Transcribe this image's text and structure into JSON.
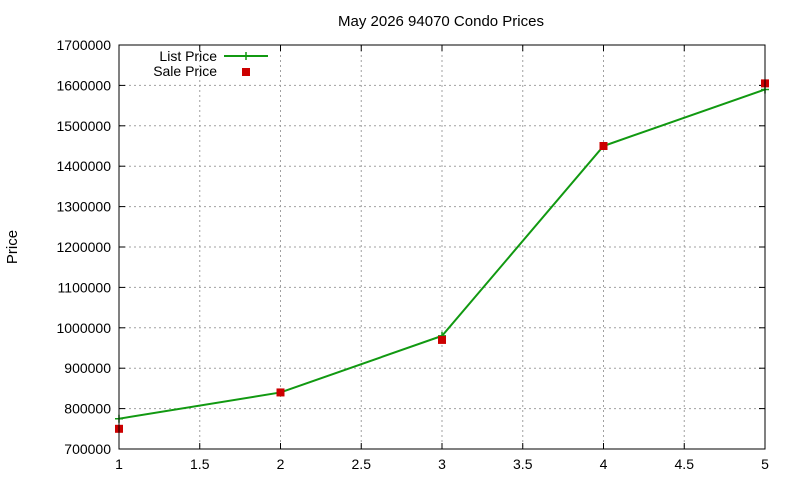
{
  "chart_data": {
    "type": "line",
    "title": "May 2026 94070 Condo Prices",
    "xlabel": "",
    "ylabel": "Price",
    "xlim": [
      1,
      5
    ],
    "ylim": [
      700000,
      1700000
    ],
    "xticks": [
      "1",
      "1.5",
      "2",
      "2.5",
      "3",
      "3.5",
      "4",
      "4.5",
      "5"
    ],
    "yticks": [
      "700000",
      "800000",
      "900000",
      "1000000",
      "1100000",
      "1200000",
      "1300000",
      "1400000",
      "1500000",
      "1600000",
      "1700000"
    ],
    "grid": true,
    "legend_position": "top-left",
    "series": [
      {
        "name": "List Price",
        "style": "line-with-plus-markers",
        "color": "#119911",
        "x": [
          1,
          2,
          3,
          4,
          5
        ],
        "y": [
          775000,
          840000,
          980000,
          1450000,
          1590000
        ]
      },
      {
        "name": "Sale Price",
        "style": "square-markers",
        "color": "#cc0000",
        "x": [
          1,
          2,
          3,
          4,
          5
        ],
        "y": [
          750000,
          840000,
          970000,
          1450000,
          1605000
        ]
      }
    ]
  }
}
